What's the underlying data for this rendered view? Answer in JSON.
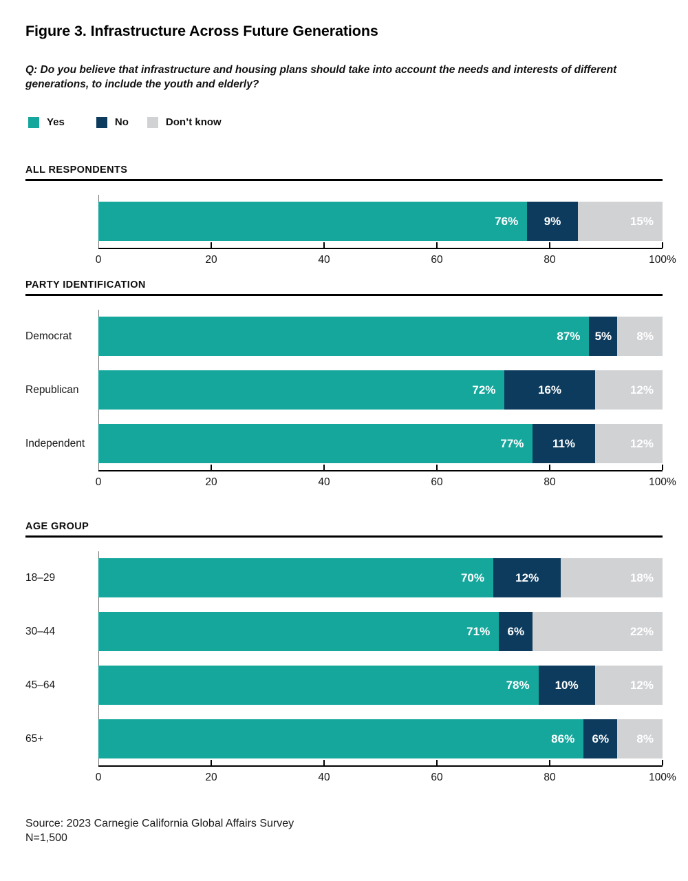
{
  "header": {
    "title": "Figure 3. Infrastructure Across Future Generations",
    "question": "Q: Do you believe that infrastructure and housing plans should take into account the needs and interests of different generations, to include the youth and elderly?"
  },
  "legend": {
    "items": [
      {
        "label": "Yes",
        "color": "#15a79c"
      },
      {
        "label": "No",
        "color": "#0d3b5d"
      },
      {
        "label": "Don’t know",
        "color": "#d1d2d4"
      }
    ]
  },
  "chart_data": [
    {
      "type": "bar",
      "stacked": true,
      "orientation": "horizontal",
      "section_title": "ALL RESPONDENTS",
      "categories": [
        ""
      ],
      "series": [
        {
          "name": "Yes",
          "color": "#15a79c",
          "values": [
            76
          ]
        },
        {
          "name": "No",
          "color": "#0d3b5d",
          "values": [
            9
          ]
        },
        {
          "name": "Don't know",
          "color": "#d1d2d4",
          "values": [
            15
          ]
        }
      ],
      "value_labels": [
        [
          "76%",
          "9%",
          "15%"
        ]
      ],
      "xlim": [
        0,
        100
      ],
      "xtick_values": [
        0,
        20,
        40,
        60,
        80,
        100
      ],
      "xtick_labels": [
        "0",
        "20",
        "40",
        "60",
        "80",
        "100%"
      ],
      "grid": false,
      "legend_position": "top"
    },
    {
      "type": "bar",
      "stacked": true,
      "orientation": "horizontal",
      "section_title": "PARTY IDENTIFICATION",
      "categories": [
        "Democrat",
        "Republican",
        "Independent"
      ],
      "series": [
        {
          "name": "Yes",
          "color": "#15a79c",
          "values": [
            87,
            72,
            77
          ]
        },
        {
          "name": "No",
          "color": "#0d3b5d",
          "values": [
            5,
            16,
            11
          ]
        },
        {
          "name": "Don't know",
          "color": "#d1d2d4",
          "values": [
            8,
            12,
            12
          ]
        }
      ],
      "value_labels": [
        [
          "87%",
          "5%",
          "8%"
        ],
        [
          "72%",
          "16%",
          "12%"
        ],
        [
          "77%",
          "11%",
          "12%"
        ]
      ],
      "xlim": [
        0,
        100
      ],
      "xtick_values": [
        0,
        20,
        40,
        60,
        80,
        100
      ],
      "xtick_labels": [
        "0",
        "20",
        "40",
        "60",
        "80",
        "100%"
      ],
      "grid": false,
      "legend_position": "top"
    },
    {
      "type": "bar",
      "stacked": true,
      "orientation": "horizontal",
      "section_title": "AGE GROUP",
      "categories": [
        "18–29",
        "30–44",
        "45–64",
        "65+"
      ],
      "series": [
        {
          "name": "Yes",
          "color": "#15a79c",
          "values": [
            70,
            71,
            78,
            86
          ]
        },
        {
          "name": "No",
          "color": "#0d3b5d",
          "values": [
            12,
            6,
            10,
            6
          ]
        },
        {
          "name": "Don't know",
          "color": "#d1d2d4",
          "values": [
            18,
            22,
            12,
            8
          ]
        }
      ],
      "value_labels": [
        [
          "70%",
          "12%",
          "18%"
        ],
        [
          "71%",
          "6%",
          "22%"
        ],
        [
          "78%",
          "10%",
          "12%"
        ],
        [
          "86%",
          "6%",
          "8%"
        ]
      ],
      "xlim": [
        0,
        100
      ],
      "xtick_values": [
        0,
        20,
        40,
        60,
        80,
        100
      ],
      "xtick_labels": [
        "0",
        "20",
        "40",
        "60",
        "80",
        "100%"
      ],
      "grid": false,
      "legend_position": "top"
    }
  ],
  "footer": {
    "source": "Source: 2023 Carnegie California Global Affairs Survey",
    "sample_size": "N=1,500"
  }
}
